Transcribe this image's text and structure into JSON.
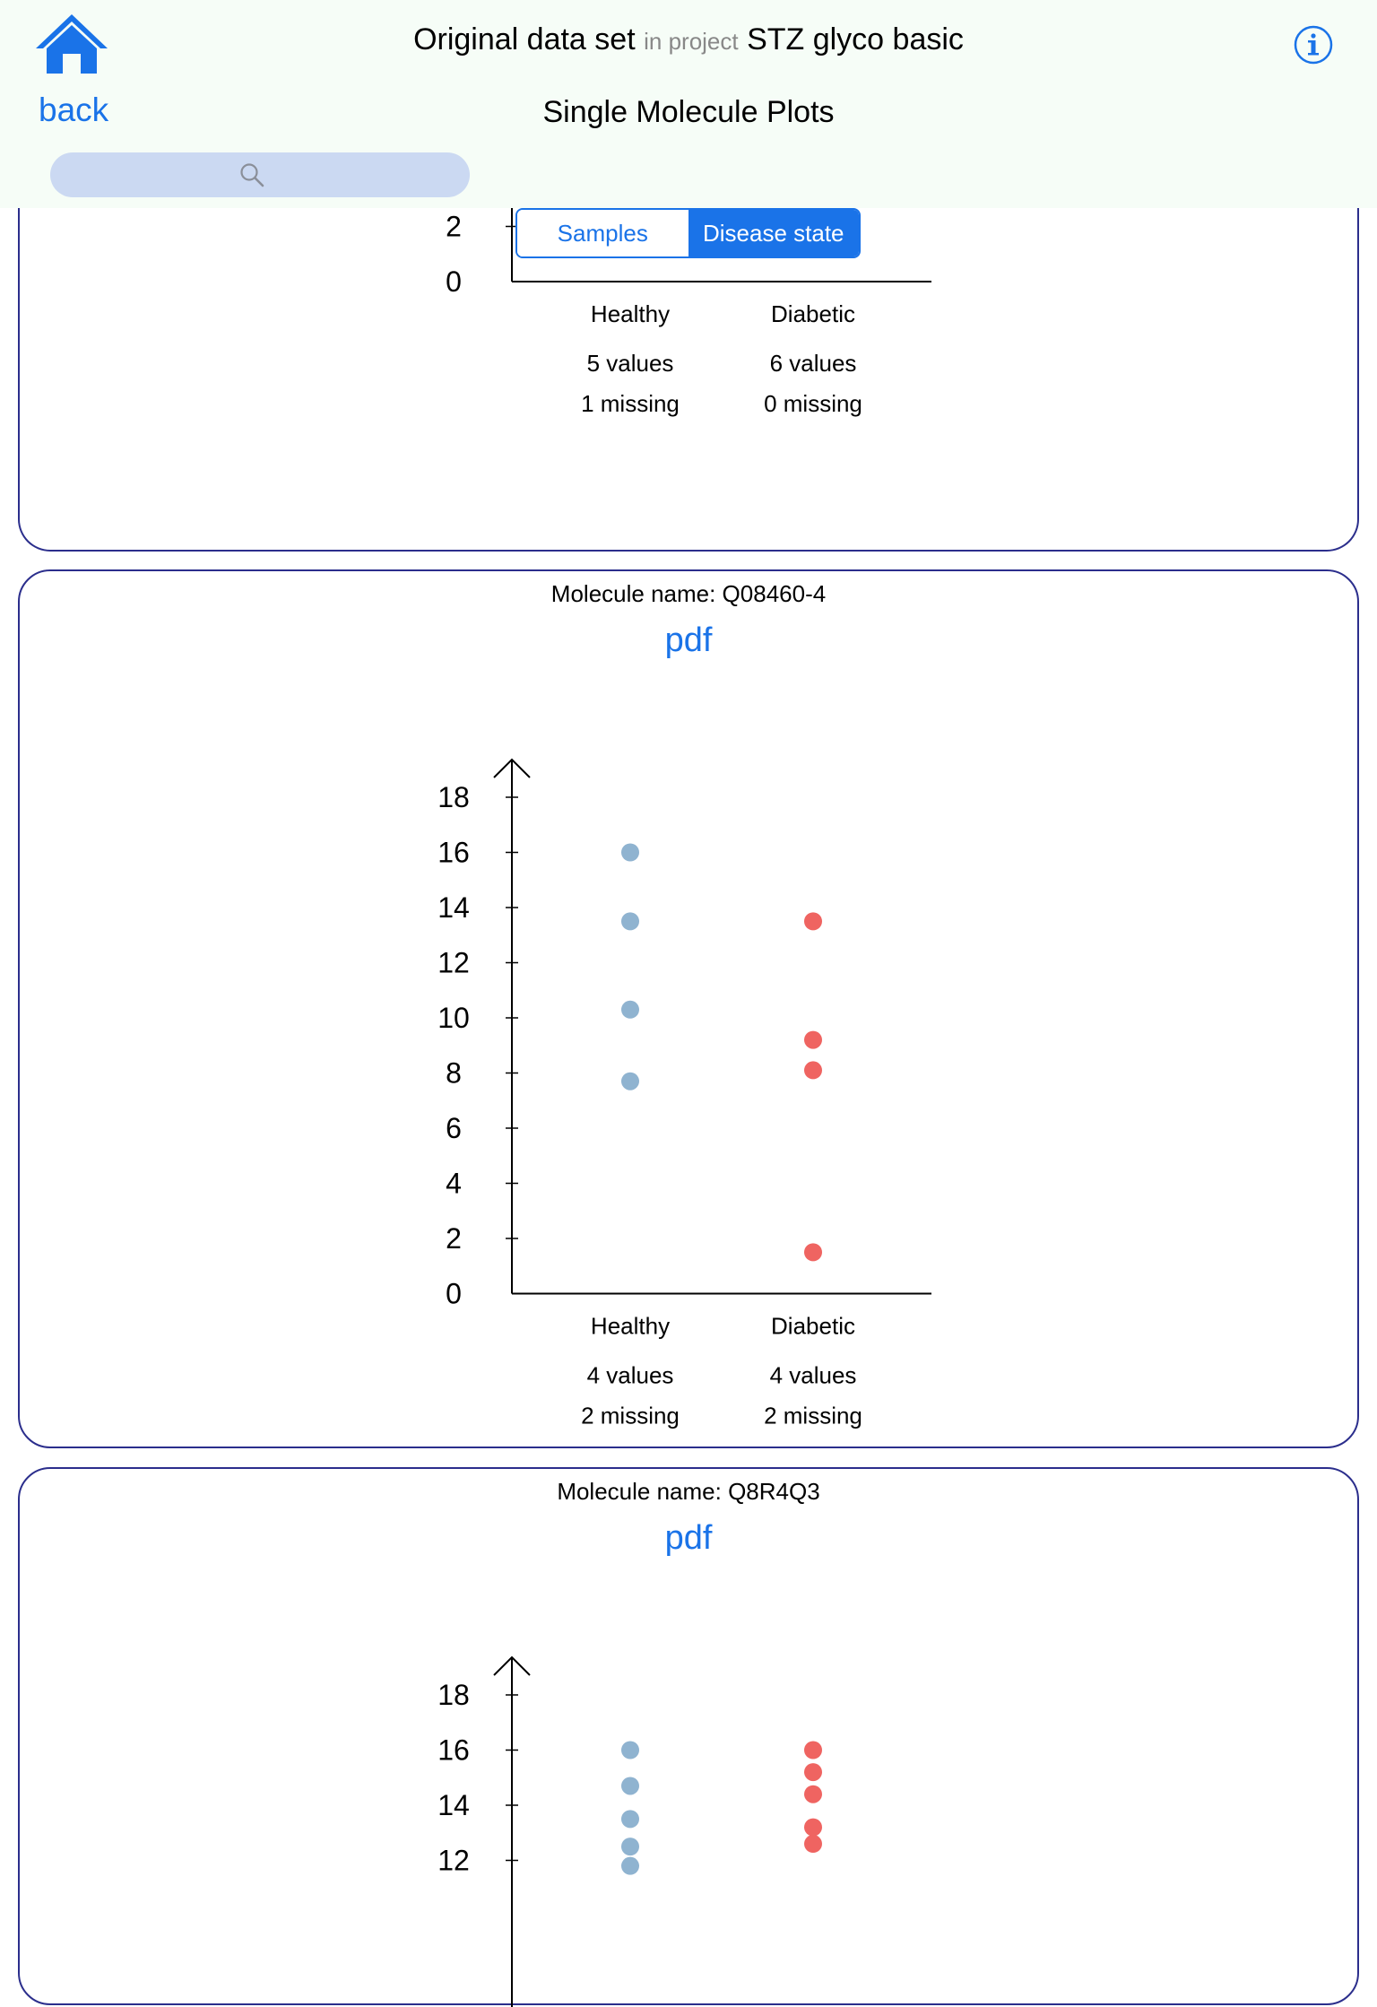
{
  "header": {
    "back_label": "back",
    "title_main": "Original data set",
    "title_connector": "in project",
    "project_name": "STZ glyco basic",
    "subtitle": "Single Molecule Plots",
    "search_placeholder": ""
  },
  "segmented": {
    "options": [
      "Samples",
      "Disease state"
    ],
    "selected": "Disease state"
  },
  "colors": {
    "accent": "#1a73e8",
    "healthy": "#8fb3d0",
    "diabetic": "#ef6461",
    "card_border": "#2b2e8c"
  },
  "cards": [
    {
      "molecule_label": "",
      "pdf_label": "",
      "chart_data": {
        "type": "scatter",
        "categories": [
          "Healthy",
          "Diabetic"
        ],
        "y_ticks": [
          0,
          2
        ],
        "ylim": [
          0,
          18
        ],
        "series": [
          {
            "category": "Healthy",
            "values": [],
            "counts": [
              "5 values",
              "1 missing"
            ]
          },
          {
            "category": "Diabetic",
            "values": [],
            "counts": [
              "6 values",
              "0 missing"
            ]
          }
        ]
      }
    },
    {
      "molecule_label": "Molecule name: Q08460-4",
      "pdf_label": "pdf",
      "chart_data": {
        "type": "scatter",
        "categories": [
          "Healthy",
          "Diabetic"
        ],
        "y_ticks": [
          0,
          2,
          4,
          6,
          8,
          10,
          12,
          14,
          16,
          18
        ],
        "ylim": [
          0,
          18
        ],
        "series": [
          {
            "category": "Healthy",
            "values": [
              16.0,
              13.5,
              10.3,
              7.7
            ],
            "counts": [
              "4 values",
              "2 missing"
            ]
          },
          {
            "category": "Diabetic",
            "values": [
              13.5,
              9.2,
              8.1,
              1.5
            ],
            "counts": [
              "4 values",
              "2 missing"
            ]
          }
        ]
      }
    },
    {
      "molecule_label": "Molecule name: Q8R4Q3",
      "pdf_label": "pdf",
      "chart_data": {
        "type": "scatter",
        "categories": [
          "Healthy",
          "Diabetic"
        ],
        "y_ticks": [
          12,
          14,
          16,
          18
        ],
        "ylim": [
          0,
          18
        ],
        "series": [
          {
            "category": "Healthy",
            "values": [
              16.0,
              14.7,
              13.5,
              12.5,
              11.8
            ],
            "counts": []
          },
          {
            "category": "Diabetic",
            "values": [
              16.0,
              15.2,
              14.4,
              13.2,
              12.6
            ],
            "counts": []
          }
        ]
      }
    }
  ]
}
